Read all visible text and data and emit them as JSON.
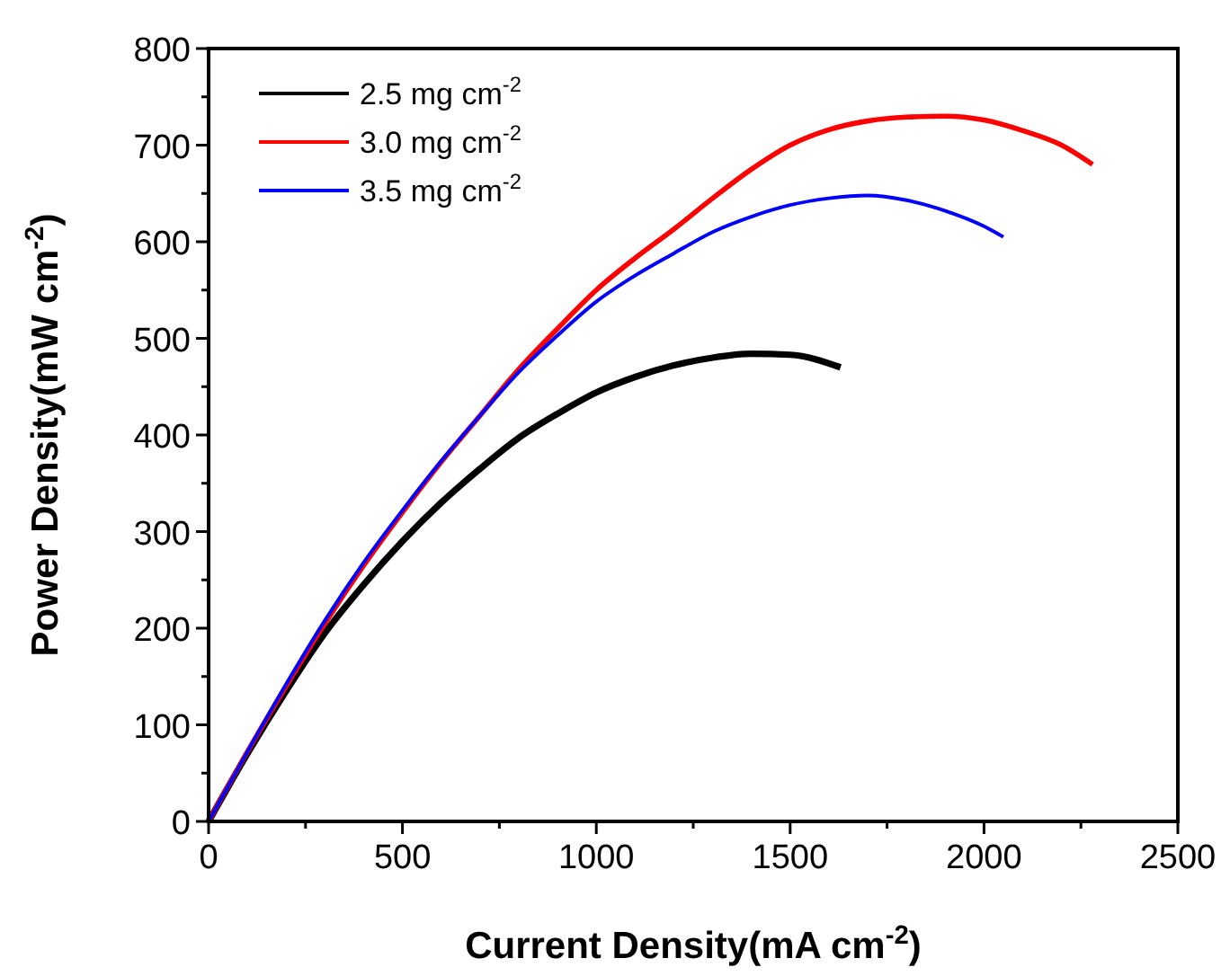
{
  "chart_data": {
    "type": "line",
    "xlabel": "Current Density(mA cm$^{-2}$)",
    "ylabel": "Power Density(mW cm$^{-2}$)",
    "xlim": [
      0,
      2500
    ],
    "ylim": [
      0,
      800
    ],
    "xticks": [
      0,
      {
        "value": 250,
        "label": null
      },
      500,
      {
        "value": 750,
        "label": null
      },
      1000,
      {
        "value": 1250,
        "label": null
      },
      1500,
      {
        "value": 1750,
        "label": null
      },
      2000,
      {
        "value": 2250,
        "label": null
      },
      2500
    ],
    "yticks": [
      0,
      {
        "value": 50,
        "label": null
      },
      100,
      {
        "value": 150,
        "label": null
      },
      200,
      {
        "value": 250,
        "label": null
      },
      300,
      {
        "value": 350,
        "label": null
      },
      400,
      {
        "value": 450,
        "label": null
      },
      500,
      {
        "value": 550,
        "label": null
      },
      600,
      {
        "value": 650,
        "label": null
      },
      700,
      {
        "value": 750,
        "label": null
      },
      800
    ],
    "legend": "top left",
    "grid": false,
    "marker": "none",
    "line_style": "solid",
    "series": [
      {
        "name": "2.5 mg cm$^{-2}$",
        "color": "#000000",
        "x": [
          0,
          100,
          200,
          300,
          400,
          500,
          600,
          700,
          800,
          900,
          1000,
          1100,
          1200,
          1300,
          1400,
          1500,
          1630
        ],
        "values": [
          0,
          70,
          135,
          195,
          245,
          290,
          330,
          365,
          397,
          422,
          444,
          460,
          472,
          480,
          484,
          483,
          470
        ]
      },
      {
        "name": "3.0 mg cm$^{-2}$",
        "color": "#ff0000",
        "x": [
          0,
          100,
          200,
          300,
          400,
          500,
          600,
          700,
          800,
          900,
          1000,
          1100,
          1200,
          1300,
          1400,
          1500,
          1600,
          1700,
          1800,
          1900,
          2000,
          2100,
          2200,
          2280
        ],
        "values": [
          0,
          72,
          140,
          205,
          265,
          320,
          372,
          420,
          468,
          510,
          550,
          583,
          613,
          645,
          675,
          700,
          716,
          725,
          729,
          730,
          726,
          715,
          700,
          680
        ]
      },
      {
        "name": "3.5 mg cm$^{-2}$",
        "color": "#0000ff",
        "x": [
          0,
          100,
          200,
          300,
          400,
          500,
          600,
          700,
          800,
          900,
          1000,
          1100,
          1200,
          1300,
          1400,
          1500,
          1600,
          1700,
          1800,
          1900,
          2000,
          2050
        ],
        "values": [
          0,
          72,
          142,
          208,
          268,
          322,
          373,
          420,
          465,
          503,
          538,
          565,
          588,
          610,
          626,
          638,
          645,
          648,
          643,
          632,
          616,
          605
        ]
      }
    ]
  }
}
